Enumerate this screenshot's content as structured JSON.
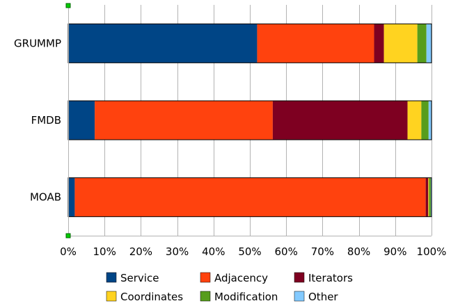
{
  "chart_data": {
    "type": "bar",
    "orientation": "horizontal",
    "stacked": true,
    "percent_scale": true,
    "title": "",
    "xlabel": "",
    "ylabel": "",
    "xlim": [
      0,
      100
    ],
    "x_ticks": [
      "0%",
      "10%",
      "20%",
      "30%",
      "40%",
      "50%",
      "60%",
      "70%",
      "80%",
      "90%",
      "100%"
    ],
    "grid": "vertical",
    "legend_position": "bottom",
    "categories": [
      "GRUMMP",
      "FMDB",
      "MOAB"
    ],
    "series": [
      {
        "name": "Service",
        "color": "#004586",
        "values": [
          52.0,
          7.3,
          1.8
        ]
      },
      {
        "name": "Adjacency",
        "color": "#ff420e",
        "values": [
          32.2,
          49.0,
          96.6
        ]
      },
      {
        "name": "Iterators",
        "color": "#7e0021",
        "values": [
          2.7,
          37.1,
          0.7
        ]
      },
      {
        "name": "Coordinates",
        "color": "#ffd320",
        "values": [
          9.2,
          3.8,
          0.2
        ]
      },
      {
        "name": "Modification",
        "color": "#579d1c",
        "values": [
          2.5,
          2.0,
          0.5
        ]
      },
      {
        "name": "Other",
        "color": "#83caff",
        "values": [
          1.4,
          0.8,
          0.2
        ]
      }
    ]
  }
}
